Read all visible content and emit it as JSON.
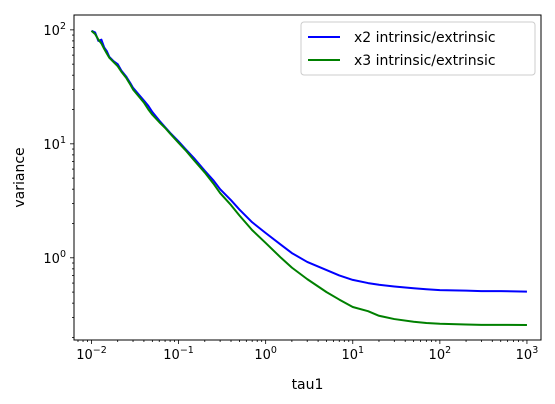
{
  "chart_data": {
    "type": "line",
    "xlabel": "tau1",
    "ylabel": "variance",
    "xscale": "log",
    "yscale": "log",
    "xlim": [
      0.0063,
      1450
    ],
    "ylim": [
      0.19,
      135
    ],
    "x_ticks": [
      {
        "value": 0.01,
        "base": "10",
        "exp": "−2"
      },
      {
        "value": 0.1,
        "base": "10",
        "exp": "−1"
      },
      {
        "value": 1,
        "base": "10",
        "exp": "0"
      },
      {
        "value": 10,
        "base": "10",
        "exp": "1"
      },
      {
        "value": 100,
        "base": "10",
        "exp": "2"
      },
      {
        "value": 1000,
        "base": "10",
        "exp": "3"
      }
    ],
    "y_ticks": [
      {
        "value": 1,
        "base": "10",
        "exp": "0"
      },
      {
        "value": 10,
        "base": "10",
        "exp": "1"
      },
      {
        "value": 100,
        "base": "10",
        "exp": "2"
      }
    ],
    "legend_position": "top-right",
    "grid": false,
    "series": [
      {
        "name": "x2 intrinsic/extrinsic",
        "color": "#0000ff",
        "points": [
          [
            0.01,
            98
          ],
          [
            0.011,
            95
          ],
          [
            0.012,
            80
          ],
          [
            0.013,
            82
          ],
          [
            0.014,
            70
          ],
          [
            0.015,
            65
          ],
          [
            0.016,
            58
          ],
          [
            0.018,
            53
          ],
          [
            0.02,
            50
          ],
          [
            0.022,
            44
          ],
          [
            0.025,
            39
          ],
          [
            0.028,
            34
          ],
          [
            0.03,
            31
          ],
          [
            0.035,
            27
          ],
          [
            0.04,
            24
          ],
          [
            0.045,
            21.5
          ],
          [
            0.05,
            19
          ],
          [
            0.06,
            16
          ],
          [
            0.07,
            14
          ],
          [
            0.08,
            12.5
          ],
          [
            0.1,
            10.5
          ],
          [
            0.12,
            9.0
          ],
          [
            0.15,
            7.5
          ],
          [
            0.2,
            5.8
          ],
          [
            0.25,
            4.8
          ],
          [
            0.3,
            4.0
          ],
          [
            0.4,
            3.2
          ],
          [
            0.5,
            2.65
          ],
          [
            0.7,
            2.05
          ],
          [
            1.0,
            1.65
          ],
          [
            1.5,
            1.3
          ],
          [
            2.0,
            1.1
          ],
          [
            3.0,
            0.92
          ],
          [
            5.0,
            0.78
          ],
          [
            7.0,
            0.7
          ],
          [
            10,
            0.64
          ],
          [
            15,
            0.6
          ],
          [
            20,
            0.58
          ],
          [
            30,
            0.56
          ],
          [
            50,
            0.54
          ],
          [
            70,
            0.53
          ],
          [
            100,
            0.52
          ],
          [
            200,
            0.515
          ],
          [
            300,
            0.51
          ],
          [
            500,
            0.51
          ],
          [
            1000,
            0.505
          ]
        ]
      },
      {
        "name": "x3 intrinsic/extrinsic",
        "color": "#008000",
        "points": [
          [
            0.01,
            98
          ],
          [
            0.011,
            92
          ],
          [
            0.012,
            82
          ],
          [
            0.013,
            76
          ],
          [
            0.014,
            68
          ],
          [
            0.015,
            62
          ],
          [
            0.016,
            57
          ],
          [
            0.018,
            52
          ],
          [
            0.02,
            48
          ],
          [
            0.022,
            43
          ],
          [
            0.025,
            38
          ],
          [
            0.028,
            33
          ],
          [
            0.03,
            30
          ],
          [
            0.035,
            26
          ],
          [
            0.04,
            23
          ],
          [
            0.045,
            20
          ],
          [
            0.05,
            18
          ],
          [
            0.06,
            15.5
          ],
          [
            0.07,
            13.8
          ],
          [
            0.08,
            12.3
          ],
          [
            0.1,
            10.2
          ],
          [
            0.12,
            8.8
          ],
          [
            0.15,
            7.2
          ],
          [
            0.2,
            5.6
          ],
          [
            0.25,
            4.5
          ],
          [
            0.3,
            3.7
          ],
          [
            0.4,
            2.9
          ],
          [
            0.5,
            2.35
          ],
          [
            0.7,
            1.75
          ],
          [
            1.0,
            1.35
          ],
          [
            1.5,
            1.0
          ],
          [
            2.0,
            0.82
          ],
          [
            3.0,
            0.65
          ],
          [
            5.0,
            0.5
          ],
          [
            7.0,
            0.43
          ],
          [
            10,
            0.37
          ],
          [
            15,
            0.34
          ],
          [
            20,
            0.31
          ],
          [
            30,
            0.29
          ],
          [
            50,
            0.275
          ],
          [
            70,
            0.268
          ],
          [
            100,
            0.264
          ],
          [
            200,
            0.26
          ],
          [
            300,
            0.258
          ],
          [
            500,
            0.258
          ],
          [
            1000,
            0.257
          ]
        ]
      }
    ]
  }
}
